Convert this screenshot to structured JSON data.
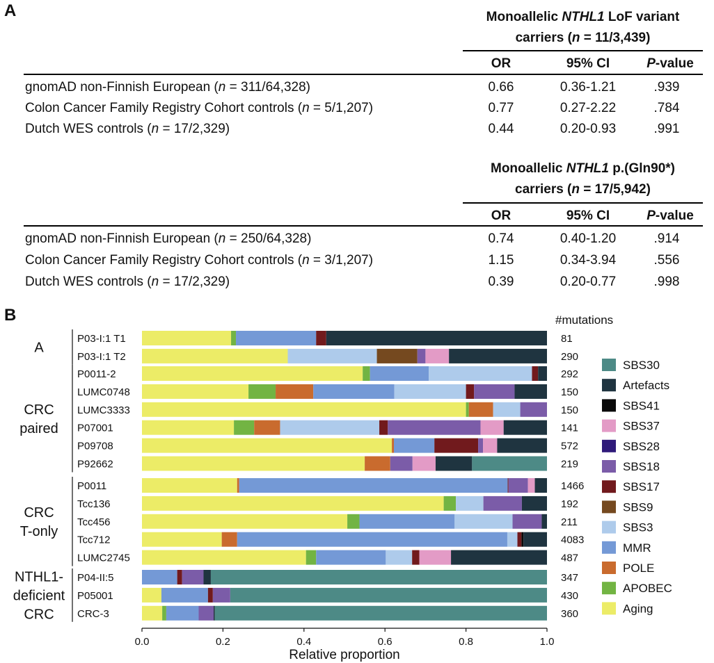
{
  "panel_a": {
    "label": "A",
    "tables": [
      {
        "title_line1_pre": "Monoallelic ",
        "title_line1_italic": "NTHL1",
        "title_line1_post": " LoF variant",
        "title_line2_pre": "carriers (",
        "title_line2_italic": "n",
        "title_line2_post": " = 11/3,439)",
        "columns": [
          "OR",
          "95% CI",
          "-value"
        ],
        "p_italic": "P",
        "rows": [
          {
            "pre": "gnomAD non-Finnish European (",
            "n": "n",
            "post": " = 311/64,328)",
            "or": "0.66",
            "ci": "0.36-1.21",
            "p": ".939"
          },
          {
            "pre": "Colon Cancer Family Registry Cohort controls (",
            "n": "n",
            "post": " = 5/1,207)",
            "or": "0.77",
            "ci": "0.27-2.22",
            "p": ".784"
          },
          {
            "pre": "Dutch WES controls (",
            "n": "n",
            "post": " = 17/2,329)",
            "or": "0.44",
            "ci": "0.20-0.93",
            "p": ".991"
          }
        ]
      },
      {
        "title_line1_pre": "Monoallelic ",
        "title_line1_italic": "NTHL1",
        "title_line1_post": " p.(Gln90*)",
        "title_line2_pre": "carriers (",
        "title_line2_italic": "n",
        "title_line2_post": " = 17/5,942)",
        "columns": [
          "OR",
          "95% CI",
          "-value"
        ],
        "p_italic": "P",
        "rows": [
          {
            "pre": "gnomAD non-Finnish European (",
            "n": "n",
            "post": " = 250/64,328)",
            "or": "0.74",
            "ci": "0.40-1.20",
            "p": ".914"
          },
          {
            "pre": "Colon Cancer Family Registry Cohort controls (",
            "n": "n",
            "post": " = 3/1,207)",
            "or": "1.15",
            "ci": "0.34-3.94",
            "p": ".556"
          },
          {
            "pre": "Dutch WES controls (",
            "n": "n",
            "post": " = 17/2,329)",
            "or": "0.39",
            "ci": "0.20-0.77",
            "p": ".998"
          }
        ]
      }
    ]
  },
  "panel_b": {
    "label": "B"
  },
  "chart_data": {
    "type": "bar",
    "orientation": "horizontal",
    "stacked": true,
    "xlabel": "Relative proportion",
    "xlim": [
      0,
      1
    ],
    "xticks": [
      "0.0",
      "0.2",
      "0.4",
      "0.6",
      "0.8",
      "1.0"
    ],
    "mutations_header": "#mutations",
    "legend_position": "right",
    "signatures": [
      {
        "name": "Aging",
        "color": "#ecec67"
      },
      {
        "name": "APOBEC",
        "color": "#72b443"
      },
      {
        "name": "POLE",
        "color": "#c96b2e"
      },
      {
        "name": "MMR",
        "color": "#7499d6"
      },
      {
        "name": "SBS3",
        "color": "#aecbeb"
      },
      {
        "name": "SBS9",
        "color": "#75491f"
      },
      {
        "name": "SBS17",
        "color": "#711a1d"
      },
      {
        "name": "SBS18",
        "color": "#7b5ca8"
      },
      {
        "name": "SBS28",
        "color": "#2f1a7a"
      },
      {
        "name": "SBS37",
        "color": "#e39bc6"
      },
      {
        "name": "SBS41",
        "color": "#0a0a0a"
      },
      {
        "name": "Artefacts",
        "color": "#1f3440"
      },
      {
        "name": "SBS30",
        "color": "#4d8a86"
      }
    ],
    "legend_order": [
      "SBS30",
      "Artefacts",
      "SBS41",
      "SBS37",
      "SBS28",
      "SBS18",
      "SBS17",
      "SBS9",
      "SBS3",
      "MMR",
      "POLE",
      "APOBEC",
      "Aging"
    ],
    "groups": [
      {
        "lines": [
          "A"
        ],
        "samples": [
          {
            "name": "P03-I:1 T1",
            "mutations": "81",
            "segments": {
              "Aging": 0.22,
              "APOBEC": 0.012,
              "MMR": 0.198,
              "SBS17": 0.025,
              "Artefacts": 0.545
            }
          },
          {
            "name": "P03-I:1 T2",
            "mutations": "290",
            "segments": {
              "Aging": 0.36,
              "SBS3": 0.22,
              "SBS9": 0.1,
              "SBS18": 0.02,
              "SBS37": 0.058,
              "Artefacts": 0.242
            }
          }
        ]
      },
      {
        "lines": [
          "CRC",
          "paired"
        ],
        "samples": [
          {
            "name": "P0011-2",
            "mutations": "292",
            "segments": {
              "Aging": 0.545,
              "APOBEC": 0.018,
              "MMR": 0.145,
              "SBS3": 0.255,
              "SBS17": 0.015,
              "Artefacts": 0.022
            }
          },
          {
            "name": "LUMC0748",
            "mutations": "150",
            "segments": {
              "Aging": 0.263,
              "APOBEC": 0.067,
              "POLE": 0.093,
              "MMR": 0.2,
              "SBS3": 0.177,
              "SBS17": 0.02,
              "SBS18": 0.1,
              "Artefacts": 0.08
            }
          },
          {
            "name": "LUMC3333",
            "mutations": "150",
            "segments": {
              "Aging": 0.8,
              "APOBEC": 0.007,
              "POLE": 0.06,
              "SBS3": 0.067,
              "SBS18": 0.066
            }
          },
          {
            "name": "P07001",
            "mutations": "141",
            "segments": {
              "Aging": 0.227,
              "APOBEC": 0.05,
              "POLE": 0.064,
              "SBS3": 0.245,
              "SBS17": 0.021,
              "SBS18": 0.229,
              "SBS37": 0.057,
              "Artefacts": 0.107
            }
          },
          {
            "name": "P09708",
            "mutations": "572",
            "segments": {
              "Aging": 0.617,
              "POLE": 0.005,
              "MMR": 0.1,
              "SBS17": 0.108,
              "SBS18": 0.012,
              "SBS37": 0.035,
              "Artefacts": 0.123
            }
          },
          {
            "name": "P92662",
            "mutations": "219",
            "segments": {
              "Aging": 0.55,
              "POLE": 0.063,
              "SBS18": 0.055,
              "SBS37": 0.057,
              "Artefacts": 0.09,
              "SBS30": 0.185
            }
          }
        ]
      },
      {
        "lines": [
          "CRC",
          "T-only"
        ],
        "samples": [
          {
            "name": "P0011",
            "mutations": "1466",
            "segments": {
              "Aging": 0.235,
              "POLE": 0.005,
              "MMR": 0.663,
              "SBS17": 0.002,
              "SBS18": 0.048,
              "SBS37": 0.017,
              "Artefacts": 0.03
            }
          },
          {
            "name": "Tcc136",
            "mutations": "192",
            "segments": {
              "Aging": 0.745,
              "APOBEC": 0.03,
              "SBS3": 0.068,
              "SBS18": 0.095,
              "Artefacts": 0.062
            }
          },
          {
            "name": "Tcc456",
            "mutations": "211",
            "segments": {
              "Aging": 0.507,
              "APOBEC": 0.03,
              "MMR": 0.235,
              "SBS3": 0.143,
              "SBS18": 0.072,
              "Artefacts": 0.013
            }
          },
          {
            "name": "Tcc712",
            "mutations": "4083",
            "segments": {
              "Aging": 0.197,
              "POLE": 0.038,
              "MMR": 0.667,
              "SBS3": 0.025,
              "SBS17": 0.01,
              "SBS41": 0.005,
              "Artefacts": 0.058
            }
          },
          {
            "name": "LUMC2745",
            "mutations": "487",
            "segments": {
              "Aging": 0.405,
              "APOBEC": 0.025,
              "MMR": 0.172,
              "SBS3": 0.065,
              "SBS17": 0.018,
              "SBS37": 0.078,
              "Artefacts": 0.237
            }
          }
        ]
      },
      {
        "lines": [
          "NTHL1-",
          "deficient",
          "CRC"
        ],
        "samples": [
          {
            "name": "P04-II:5",
            "mutations": "347",
            "segments": {
              "MMR": 0.087,
              "SBS17": 0.012,
              "SBS18": 0.053,
              "Artefacts": 0.018,
              "SBS30": 0.83
            }
          },
          {
            "name": "P05001",
            "mutations": "430",
            "segments": {
              "Aging": 0.048,
              "MMR": 0.115,
              "SBS17": 0.012,
              "SBS18": 0.043,
              "SBS30": 0.782
            }
          },
          {
            "name": "CRC-3",
            "mutations": "360",
            "segments": {
              "Aging": 0.05,
              "APOBEC": 0.01,
              "MMR": 0.08,
              "SBS18": 0.037,
              "Artefacts": 0.003,
              "SBS30": 0.82
            }
          }
        ]
      }
    ]
  }
}
